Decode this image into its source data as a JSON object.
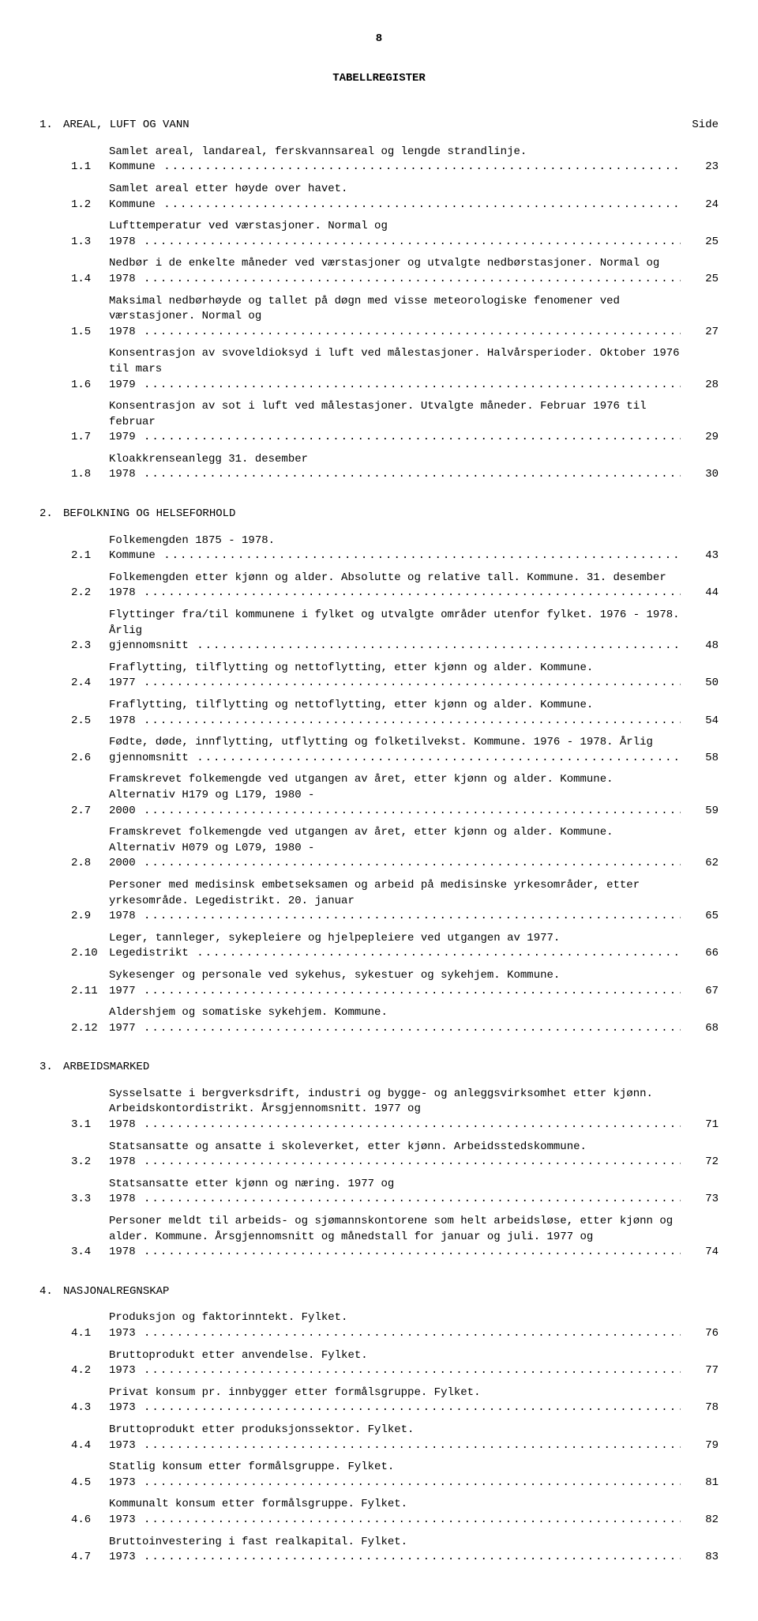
{
  "page_number": "8",
  "title": "TABELLREGISTER",
  "side_label": "Side",
  "sections": [
    {
      "num": "1.",
      "title": "AREAL, LUFT OG VANN",
      "entries": [
        {
          "num": "1.1",
          "text": "Samlet areal, landareal, ferskvannsareal og lengde strandlinje.  Kommune",
          "page": "23"
        },
        {
          "num": "1.2",
          "text": "Samlet areal etter høyde over havet.  Kommune",
          "page": "24"
        },
        {
          "num": "1.3",
          "text": "Lufttemperatur ved værstasjoner.  Normal og 1978",
          "page": "25"
        },
        {
          "num": "1.4",
          "text": "Nedbør i de enkelte måneder ved værstasjoner og utvalgte nedbørstasjoner.  Normal og 1978",
          "page": "25"
        },
        {
          "num": "1.5",
          "text": "Maksimal nedbørhøyde og tallet på døgn med visse meteorologiske fenomener ved værstasjoner.  Normal og 1978",
          "page": "27"
        },
        {
          "num": "1.6",
          "text": "Konsentrasjon av svoveldioksyd i luft ved målestasjoner.  Halvårsperioder.  Oktober 1976 til mars 1979",
          "page": "28"
        },
        {
          "num": "1.7",
          "text": "Konsentrasjon av sot i luft ved målestasjoner.  Utvalgte måneder.  Februar 1976 til februar 1979",
          "page": "29"
        },
        {
          "num": "1.8",
          "text": "Kloakkrenseanlegg 31. desember 1978",
          "page": "30"
        }
      ]
    },
    {
      "num": "2.",
      "title": "BEFOLKNING OG HELSEFORHOLD",
      "entries": [
        {
          "num": "2.1",
          "text": "Folkemengden 1875 - 1978.  Kommune",
          "page": "43"
        },
        {
          "num": "2.2",
          "text": "Folkemengden etter kjønn og alder.  Absolutte og relative tall.  Kommune. 31. desember 1978",
          "page": "44"
        },
        {
          "num": "2.3",
          "text": "Flyttinger fra/til kommunene i fylket og utvalgte områder utenfor fylket.  1976 - 1978.  Årlig gjennomsnitt",
          "page": "48"
        },
        {
          "num": "2.4",
          "text": "Fraflytting, tilflytting og nettoflytting, etter kjønn og alder.  Kommune.  1977",
          "page": "50"
        },
        {
          "num": "2.5",
          "text": "Fraflytting, tilflytting og nettoflytting, etter kjønn og alder.  Kommune.  1978",
          "page": "54"
        },
        {
          "num": "2.6",
          "text": "Fødte, døde, innflytting, utflytting og folketilvekst.  Kommune.  1976 - 1978. Årlig gjennomsnitt",
          "page": "58"
        },
        {
          "num": "2.7",
          "text": "Framskrevet folkemengde ved utgangen av året, etter kjønn og alder.  Kommune. Alternativ H179 og L179, 1980 - 2000",
          "page": "59"
        },
        {
          "num": "2.8",
          "text": "Framskrevet folkemengde ved utgangen av året, etter kjønn og alder.  Kommune. Alternativ H079 og L079, 1980 - 2000",
          "page": "62"
        },
        {
          "num": "2.9",
          "text": "Personer med medisinsk embetseksamen og arbeid på medisinske yrkesområder, etter yrkesområde.  Legedistrikt.  20. januar 1978",
          "page": "65"
        },
        {
          "num": "2.10",
          "text": "Leger, tannleger, sykepleiere og hjelpepleiere ved utgangen av 1977.  Legedistrikt",
          "page": "66"
        },
        {
          "num": "2.11",
          "text": "Sykesenger og personale ved sykehus, sykestuer og sykehjem.  Kommune.  1977",
          "page": "67"
        },
        {
          "num": "2.12",
          "text": "Aldershjem og somatiske sykehjem.  Kommune.  1977",
          "page": "68"
        }
      ]
    },
    {
      "num": "3.",
      "title": "ARBEIDSMARKED",
      "entries": [
        {
          "num": "3.1",
          "text": "Sysselsatte i bergverksdrift, industri og bygge- og anleggsvirksomhet etter kjønn. Arbeidskontordistrikt.  Årsgjennomsnitt.  1977 og 1978",
          "page": "71"
        },
        {
          "num": "3.2",
          "text": "Statsansatte og ansatte i skoleverket, etter kjønn.  Arbeidsstedskommune.  1978",
          "page": "72"
        },
        {
          "num": "3.3",
          "text": "Statsansatte etter kjønn og næring.  1977 og 1978",
          "page": "73"
        },
        {
          "num": "3.4",
          "text": "Personer meldt til arbeids- og sjømannskontorene som helt arbeidsløse, etter kjønn og alder.  Kommune.  Årsgjennomsnitt og månedstall for januar og juli.  1977 og 1978",
          "page": "74"
        }
      ]
    },
    {
      "num": "4.",
      "title": "NASJONALREGNSKAP",
      "entries": [
        {
          "num": "4.1",
          "text": "Produksjon og faktorinntekt.  Fylket.  1973",
          "page": "76"
        },
        {
          "num": "4.2",
          "text": "Bruttoprodukt etter anvendelse.  Fylket.  1973",
          "page": "77"
        },
        {
          "num": "4.3",
          "text": "Privat konsum pr. innbygger etter formålsgruppe.  Fylket.  1973",
          "page": "78"
        },
        {
          "num": "4.4",
          "text": "Bruttoprodukt etter produksjonssektor.  Fylket.  1973",
          "page": "79"
        },
        {
          "num": "4.5",
          "text": "Statlig konsum etter formålsgruppe.  Fylket.  1973",
          "page": "81"
        },
        {
          "num": "4.6",
          "text": "Kommunalt konsum etter formålsgruppe.  Fylket.  1973",
          "page": "82"
        },
        {
          "num": "4.7",
          "text": "Bruttoinvestering i fast realkapital.  Fylket.  1973",
          "page": "83"
        }
      ]
    }
  ]
}
